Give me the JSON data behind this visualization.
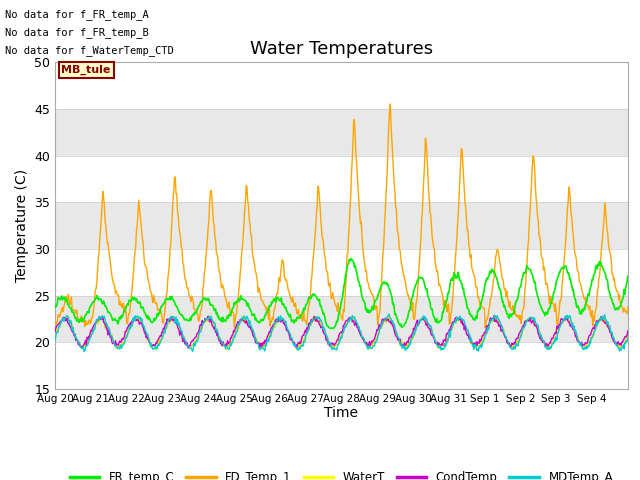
{
  "title": "Water Temperatures",
  "xlabel": "Time",
  "ylabel": "Temperature (C)",
  "ylim": [
    15,
    50
  ],
  "background_color": "#ffffff",
  "band_color": "#e8e8e8",
  "annotations": [
    "No data for f_FR_temp_A",
    "No data for f_FR_temp_B",
    "No data for f_WaterTemp_CTD"
  ],
  "mb_tule_label": "MB_tule",
  "legend_entries": [
    "FR_temp_C",
    "FD_Temp_1",
    "WaterT",
    "CondTemp",
    "MDTemp_A"
  ],
  "legend_colors": [
    "#00ee00",
    "#ffa500",
    "#ffff00",
    "#cc00cc",
    "#00cccc"
  ],
  "x_tick_labels": [
    "Aug 20",
    "Aug 21",
    "Aug 22",
    "Aug 23",
    "Aug 24",
    "Aug 25",
    "Aug 26",
    "Aug 27",
    "Aug 28",
    "Aug 29",
    "Aug 30",
    "Aug 31",
    "Sep 1",
    "Sep 2",
    "Sep 3",
    "Sep 4"
  ],
  "n_days": 16,
  "samples_per_day": 48
}
